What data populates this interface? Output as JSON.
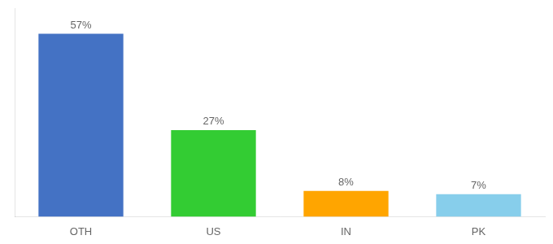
{
  "chart_data": {
    "type": "bar",
    "categories": [
      "OTH",
      "US",
      "IN",
      "PK"
    ],
    "values": [
      57,
      27,
      8,
      7
    ],
    "value_labels": [
      "57%",
      "27%",
      "8%",
      "7%"
    ],
    "colors": [
      "#4472C4",
      "#33CC33",
      "#FFA500",
      "#87CEEB"
    ],
    "ylim": [
      0,
      65
    ],
    "data_labels": true,
    "tick_labels": "x",
    "grid": false
  }
}
